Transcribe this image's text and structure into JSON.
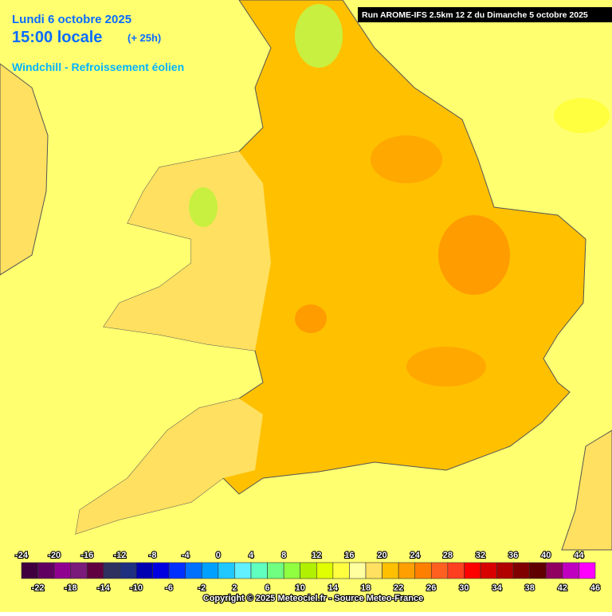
{
  "header": {
    "date": "Lundi 6 octobre 2025",
    "time": "15:00 locale",
    "lead": "(+ 25h)",
    "parameter": "Windchill - Refroissement éolien",
    "run": "Run AROME-IFS 2.5km 12 Z du Dimanche 5 octobre 2025"
  },
  "legend": {
    "levels": [
      -24,
      -22,
      -20,
      -18,
      -16,
      -14,
      -12,
      -10,
      -8,
      -6,
      -4,
      -2,
      0,
      2,
      4,
      6,
      8,
      10,
      12,
      14,
      16,
      18,
      20,
      22,
      24,
      26,
      28,
      30,
      32,
      34,
      36,
      38,
      40,
      42,
      44,
      46
    ],
    "colors": [
      "#400040",
      "#600060",
      "#900090",
      "#7a1a7a",
      "#600040",
      "#303060",
      "#203080",
      "#0000b0",
      "#0000e0",
      "#0030ff",
      "#0070ff",
      "#00a0ff",
      "#20c8ff",
      "#60f0ff",
      "#60ffc0",
      "#70ff80",
      "#90ff40",
      "#b0f000",
      "#e0ff00",
      "#ffff40",
      "#ffffa0",
      "#ffe060",
      "#ffc000",
      "#ffa000",
      "#ff8000",
      "#ff6020",
      "#ff4020",
      "#ff0000",
      "#d80000",
      "#b00000",
      "#800000",
      "#600000",
      "#900060",
      "#c000c0",
      "#ff00ff"
    ]
  },
  "footer": {
    "copyright": "Copyright © 2025 Meteociel.fr - Source Meteo-France"
  }
}
